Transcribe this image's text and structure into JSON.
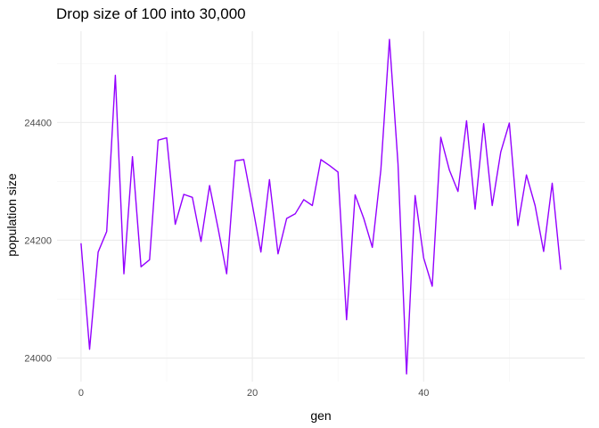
{
  "chart_data": {
    "type": "line",
    "title": "Drop size of 100 into 30,000",
    "xlabel": "gen",
    "ylabel": "population size",
    "xlim": [
      -2.8,
      58.8
    ],
    "ylim": [
      23960,
      24555
    ],
    "xticks": [
      0,
      20,
      40
    ],
    "yticks": [
      24000,
      24200,
      24400
    ],
    "xtick_labels": [
      "0",
      "20",
      "40"
    ],
    "ytick_labels": [
      "24000",
      "24200",
      "24400"
    ],
    "grid": true,
    "legend": "none",
    "line_color": "#9400ff",
    "series": [
      {
        "x": [
          0,
          1,
          2,
          3,
          4,
          5,
          6,
          7,
          8,
          9,
          10,
          11,
          12,
          13,
          14,
          15,
          16,
          17,
          18,
          19,
          20,
          21,
          22,
          23,
          24,
          25,
          26,
          27,
          28,
          29,
          30,
          31,
          32,
          33,
          34,
          35,
          36,
          37,
          38,
          39,
          40,
          41,
          42,
          43,
          44,
          45,
          46,
          47,
          48,
          49,
          50,
          51,
          52,
          53,
          54,
          55,
          56
        ],
        "values": [
          24195,
          24015,
          24180,
          24215,
          24480,
          24143,
          24342,
          24155,
          24167,
          24370,
          24374,
          24227,
          24278,
          24273,
          24198,
          24293,
          24220,
          24143,
          24335,
          24337,
          24260,
          24180,
          24303,
          24177,
          24237,
          24245,
          24269,
          24259,
          24337,
          24327,
          24316,
          24065,
          24277,
          24237,
          24188,
          24320,
          24541,
          24330,
          23973,
          24276,
          24170,
          24122,
          24375,
          24319,
          24283,
          24403,
          24253,
          24398,
          24259,
          24350,
          24399,
          24225,
          24311,
          24259,
          24181,
          24297,
          24150
        ]
      }
    ]
  }
}
